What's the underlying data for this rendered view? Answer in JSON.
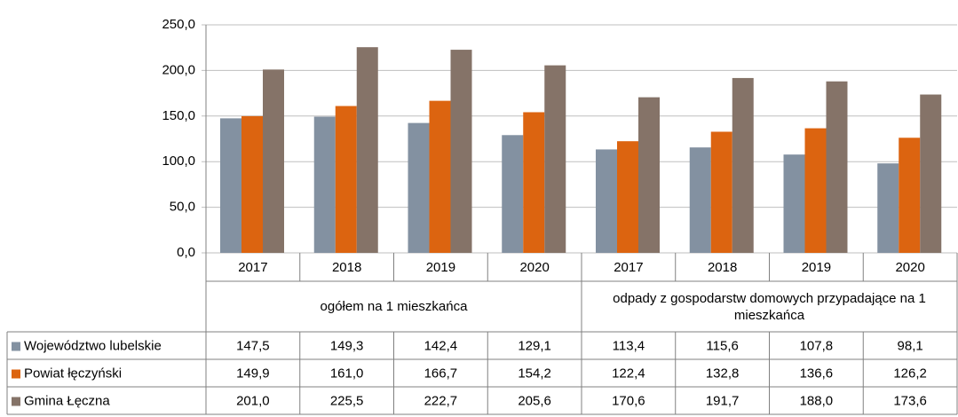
{
  "chart_data": {
    "type": "bar",
    "categories": [
      "2017",
      "2018",
      "2019",
      "2020",
      "2017",
      "2018",
      "2019",
      "2020"
    ],
    "category_groups": [
      "ogółem na 1 mieszkańca",
      "odpady z gospodarstw domowych przypadające na 1 mieszkańca"
    ],
    "series": [
      {
        "name": "Województwo lubelskie",
        "color": "#8391a1",
        "values": [
          147.5,
          149.3,
          142.4,
          129.1,
          113.4,
          115.6,
          107.8,
          98.1
        ],
        "value_labels": [
          "147,5",
          "149,3",
          "142,4",
          "129,1",
          "113,4",
          "115,6",
          "107,8",
          "98,1"
        ]
      },
      {
        "name": "Powiat łęczyński",
        "color": "#dc6410",
        "values": [
          149.9,
          161.0,
          166.7,
          154.2,
          122.4,
          132.8,
          136.6,
          126.2
        ],
        "value_labels": [
          "149,9",
          "161,0",
          "166,7",
          "154,2",
          "122,4",
          "132,8",
          "136,6",
          "126,2"
        ]
      },
      {
        "name": "Gmina Łęczna",
        "color": "#857368",
        "values": [
          201.0,
          225.5,
          222.7,
          205.6,
          170.6,
          191.7,
          188.0,
          173.6
        ],
        "value_labels": [
          "201,0",
          "225,5",
          "222,7",
          "205,6",
          "170,6",
          "191,7",
          "188,0",
          "173,6"
        ]
      }
    ],
    "ylim": [
      0,
      250
    ],
    "yticks": [
      {
        "value": 0,
        "label": "0,0"
      },
      {
        "value": 50,
        "label": "50,0"
      },
      {
        "value": 100,
        "label": "100,0"
      },
      {
        "value": 150,
        "label": "150,0"
      },
      {
        "value": 200,
        "label": "200,0"
      },
      {
        "value": 250,
        "label": "250,0"
      }
    ],
    "grid": true
  }
}
